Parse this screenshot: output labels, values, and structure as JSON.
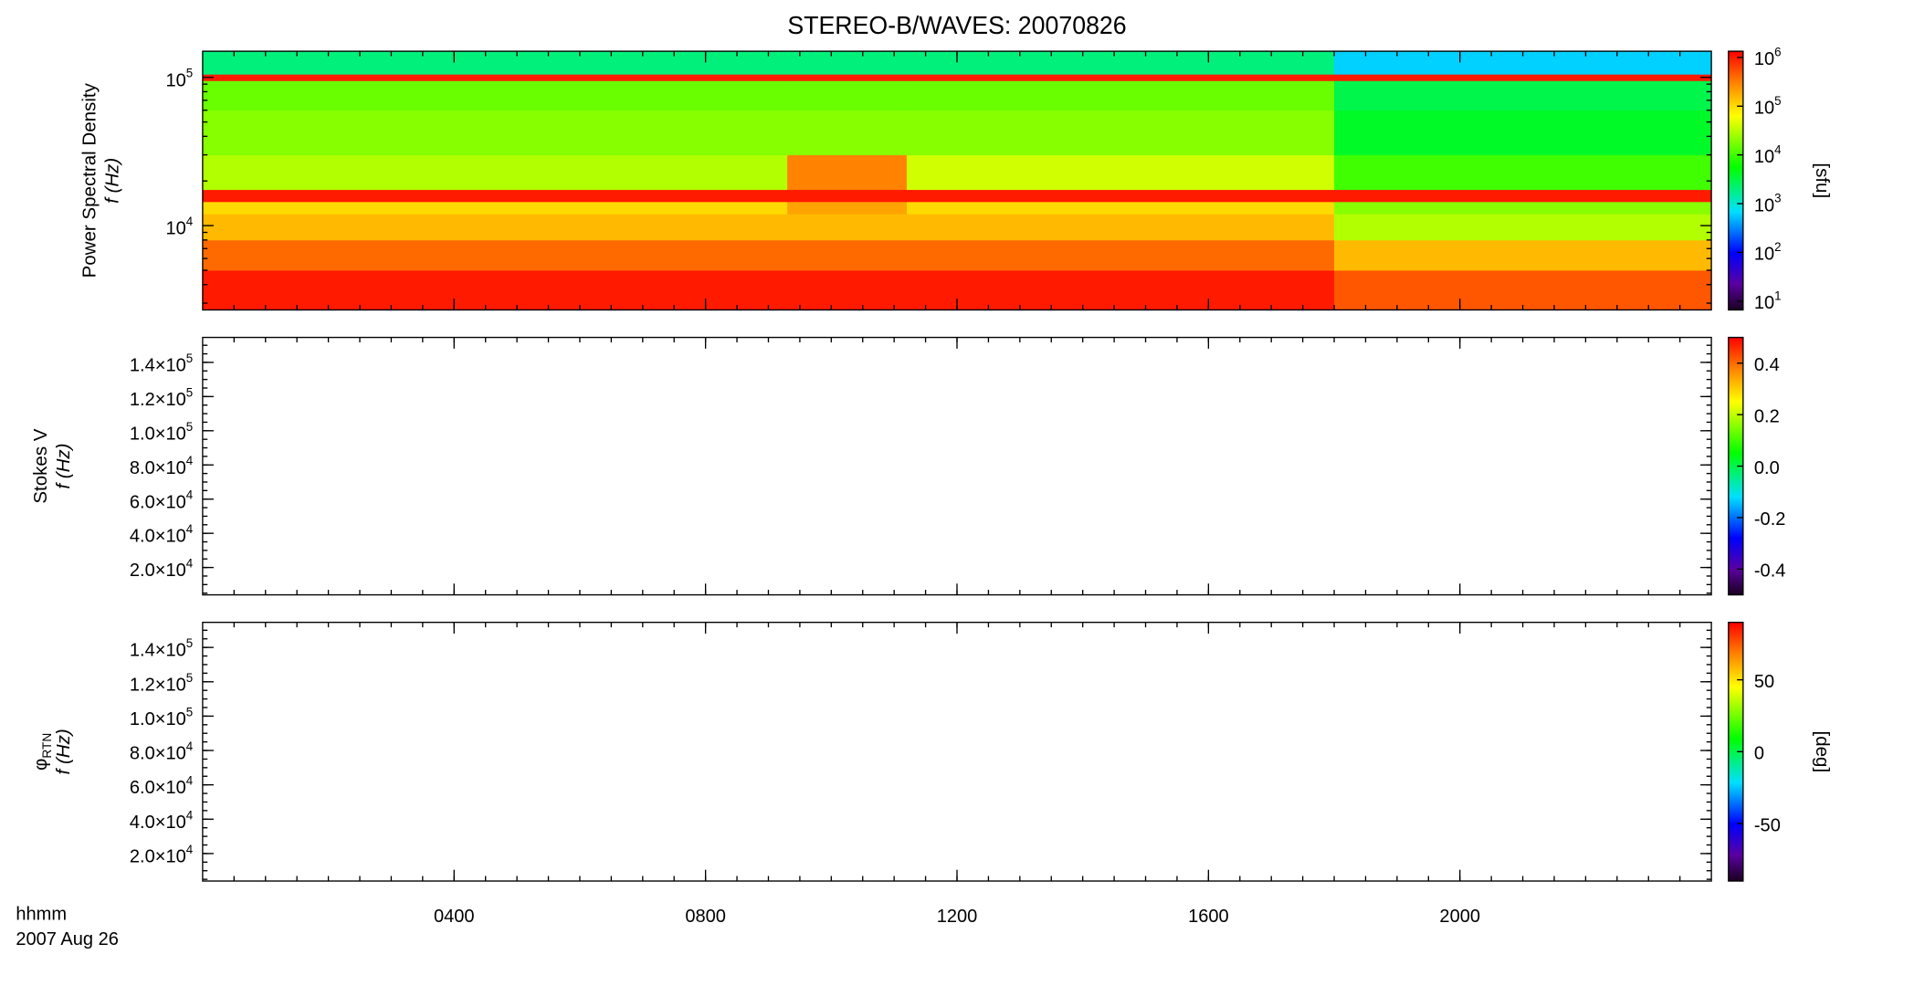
{
  "chart_data": [
    {
      "type": "heatmap",
      "title": "STEREO-B/WAVES: 20070826",
      "ylabel": [
        "Power Spectral Density",
        "f (Hz)"
      ],
      "ylog": true,
      "ylim": [
        2700,
        150000
      ],
      "yticks": [
        {
          "value": 10000,
          "label": "10^4"
        },
        {
          "value": 100000,
          "label": "10^5"
        }
      ],
      "x": [
        0,
        9.3,
        11.2,
        18,
        24
      ],
      "y": [
        2700,
        5000,
        8000,
        12000,
        14500,
        17500,
        30000,
        60000,
        95000,
        105000,
        150000
      ],
      "z": [
        [
          1000000,
          1000000,
          1000000,
          500000
        ],
        [
          400000,
          400000,
          400000,
          150000
        ],
        [
          150000,
          150000,
          150000,
          30000
        ],
        [
          100000,
          200000,
          100000,
          20000
        ],
        [
          1000000,
          1000000,
          1000000,
          1000000
        ],
        [
          30000,
          300000,
          40000,
          10000
        ],
        [
          20000,
          20000,
          20000,
          4000
        ],
        [
          15000,
          15000,
          15000,
          3000
        ],
        [
          1000000,
          1000000,
          1000000,
          1000000
        ],
        [
          2000,
          2000,
          2000,
          600
        ]
      ],
      "zlog": true,
      "zlim": [
        6.6,
        1340000
      ],
      "zticks": [
        {
          "value": 10,
          "label": "10^1"
        },
        {
          "value": 100,
          "label": "10^2"
        },
        {
          "value": 1000,
          "label": "10^3"
        },
        {
          "value": 10000,
          "label": "10^4"
        },
        {
          "value": 100000,
          "label": "10^5"
        },
        {
          "value": 1000000,
          "label": "10^6"
        }
      ],
      "zlabel": "[sfu]"
    },
    {
      "type": "heatmap",
      "ylabel": [
        "Stokes V",
        "f (Hz)"
      ],
      "ylim": [
        4000,
        154600
      ],
      "yticks": [
        {
          "value": 20000,
          "label": "2.0×10^4"
        },
        {
          "value": 40000,
          "label": "4.0×10^4"
        },
        {
          "value": 60000,
          "label": "6.0×10^4"
        },
        {
          "value": 80000,
          "label": "8.0×10^4"
        },
        {
          "value": 100000,
          "label": "1.0×10^5"
        },
        {
          "value": 120000,
          "label": "1.2×10^5"
        },
        {
          "value": 140000,
          "label": "1.4×10^5"
        }
      ],
      "zlim": [
        -0.5,
        0.5
      ],
      "zticks": [
        -0.4,
        -0.2,
        {
          "value": 0,
          "label": "0.0"
        },
        0.2,
        0.4
      ]
    },
    {
      "type": "heatmap",
      "ylabel": [
        "φ_RTN",
        "f (Hz)"
      ],
      "ylim": [
        4000,
        154600
      ],
      "yticks": [
        {
          "value": 20000,
          "label": "2.0×10^4"
        },
        {
          "value": 40000,
          "label": "4.0×10^4"
        },
        {
          "value": 60000,
          "label": "6.0×10^4"
        },
        {
          "value": 80000,
          "label": "8.0×10^4"
        },
        {
          "value": 100000,
          "label": "1.0×10^5"
        },
        {
          "value": 120000,
          "label": "1.2×10^5"
        },
        {
          "value": 140000,
          "label": "1.4×10^5"
        }
      ],
      "zlim": [
        -90,
        90
      ],
      "zticks": [
        -50,
        0,
        50
      ],
      "zlabel": "[deg]",
      "xlabel": "hhmm",
      "date": "2007 Aug 26",
      "xlim": [
        0,
        24
      ],
      "xticks": [
        {
          "value": 4,
          "label": "0400"
        },
        {
          "value": 8,
          "label": "0800"
        },
        {
          "value": 12,
          "label": "1200"
        },
        {
          "value": 16,
          "label": "1600"
        },
        {
          "value": 20,
          "label": "2000"
        }
      ]
    }
  ]
}
